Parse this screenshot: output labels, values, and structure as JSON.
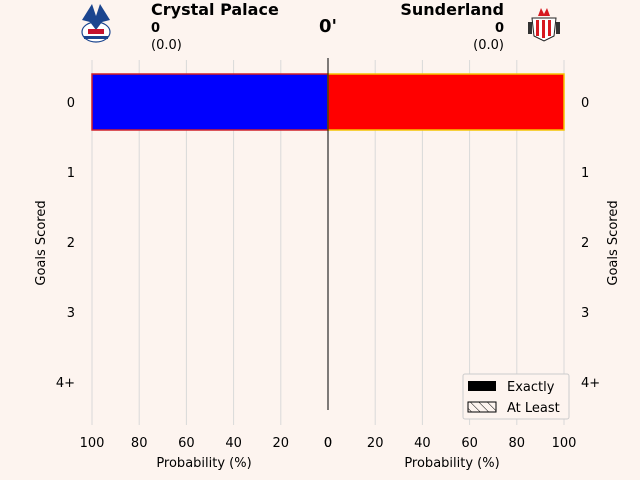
{
  "match": {
    "minute": "0'",
    "home": {
      "name": "Crystal Palace",
      "score": "0",
      "xg": "(0.0)",
      "logo_icon": "crystal-palace-crest-icon",
      "bar_color": "#0000ff",
      "edge_color": "#d0202a"
    },
    "away": {
      "name": "Sunderland",
      "score": "0",
      "xg": "(0.0)",
      "logo_icon": "sunderland-crest-icon",
      "bar_color": "#ff0000",
      "edge_color": "#f5c400"
    }
  },
  "chart_data": {
    "type": "bar",
    "orientation": "horizontal-mirrored",
    "categories": [
      "0",
      "1",
      "2",
      "3",
      "4+"
    ],
    "series": [
      {
        "name": "Crystal Palace",
        "side": "left",
        "exactly": [
          100,
          0,
          0,
          0,
          0
        ],
        "at_least": [
          100,
          0,
          0,
          0,
          0
        ]
      },
      {
        "name": "Sunderland",
        "side": "right",
        "exactly": [
          100,
          0,
          0,
          0,
          0
        ],
        "at_least": [
          100,
          0,
          0,
          0,
          0
        ]
      }
    ],
    "xlabel_left": "Probability (%)",
    "xlabel_right": "Probability (%)",
    "ylabel_left": "Goals Scored",
    "ylabel_right": "Goals Scored",
    "xlim": [
      0,
      100
    ],
    "xticks": [
      100,
      80,
      60,
      40,
      20,
      0,
      20,
      40,
      60,
      80,
      100
    ],
    "grid": "vertical",
    "legend": {
      "placement": "bottom-right",
      "entries": [
        {
          "label": "Exactly",
          "style": "solid"
        },
        {
          "label": "At Least",
          "style": "hatched"
        }
      ]
    }
  }
}
